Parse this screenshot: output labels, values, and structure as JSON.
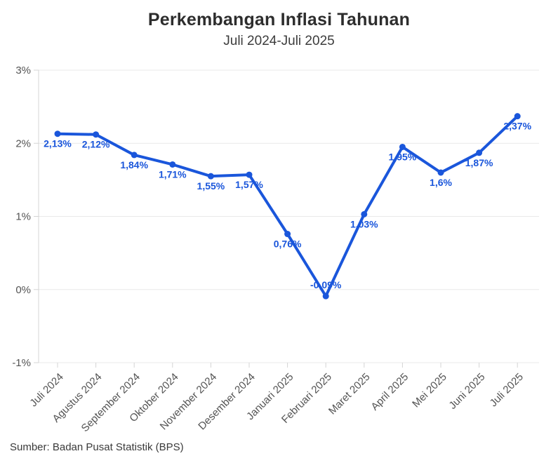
{
  "header": {
    "title": "Perkembangan Inflasi Tahunan",
    "subtitle": "Juli 2024-Juli 2025"
  },
  "footer": {
    "source": "Sumber: Badan Pusat Statistik (BPS)"
  },
  "chart_data": {
    "type": "line",
    "title": "Perkembangan Inflasi Tahunan",
    "subtitle": "Juli 2024-Juli 2025",
    "categories": [
      "Juli 2024",
      "Agustus 2024",
      "September 2024",
      "Oktober 2024",
      "November 2024",
      "Desember 2024",
      "Januari 2025",
      "Februari 2025",
      "Maret 2025",
      "April 2025",
      "Mei 2025",
      "Juni 2025",
      "Juli 2025"
    ],
    "values": [
      2.13,
      2.12,
      1.84,
      1.71,
      1.55,
      1.57,
      0.76,
      -0.09,
      1.03,
      1.95,
      1.6,
      1.87,
      2.37
    ],
    "point_labels": [
      "2,13%",
      "2,12%",
      "1,84%",
      "1,71%",
      "1,55%",
      "1,57%",
      "0,76%",
      "-0,09%",
      "1,03%",
      "1,95%",
      "1,6%",
      "1,87%",
      "2,37%"
    ],
    "xlabel": "",
    "ylabel": "",
    "ylim": [
      -1,
      3
    ],
    "y_ticks": [
      {
        "value": 3,
        "label": "3%"
      },
      {
        "value": 2,
        "label": "2%"
      },
      {
        "value": 1,
        "label": "1%"
      },
      {
        "value": 0,
        "label": "0%"
      },
      {
        "value": -1,
        "label": "-1%"
      }
    ],
    "grid": true,
    "legend": false,
    "colors": {
      "line": "#1a56db",
      "point_label": "#1a56db",
      "grid": "#e9e9e9",
      "axis": "#d4d4d4",
      "tick_label": "#545454"
    }
  }
}
